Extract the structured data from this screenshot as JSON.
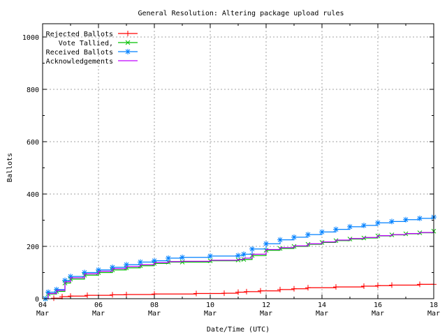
{
  "chart_data": {
    "type": "line",
    "title": "General Resolution: Altering package upload rules",
    "xlabel": "Date/Time (UTC)",
    "ylabel": "Ballots",
    "xlim": [
      4,
      18
    ],
    "ylim": [
      0,
      1040
    ],
    "grid": true,
    "legend_placement": "top-left",
    "x_ticks": [
      {
        "v": 4,
        "day": "04",
        "month": "Mar"
      },
      {
        "v": 6,
        "day": "06",
        "month": "Mar"
      },
      {
        "v": 8,
        "day": "08",
        "month": "Mar"
      },
      {
        "v": 10,
        "day": "10",
        "month": "Mar"
      },
      {
        "v": 12,
        "day": "12",
        "month": "Mar"
      },
      {
        "v": 14,
        "day": "14",
        "month": "Mar"
      },
      {
        "v": 16,
        "day": "16",
        "month": "Mar"
      },
      {
        "v": 18,
        "day": "18",
        "month": "Mar"
      }
    ],
    "y_ticks": [
      0,
      200,
      400,
      600,
      800,
      1000
    ],
    "series": [
      {
        "name": "Rejected Ballots",
        "color": "#ff0000",
        "marker": "plus",
        "x": [
          4.4,
          4.7,
          5.0,
          5.6,
          6.5,
          7.0,
          8.0,
          9.5,
          10.5,
          11.0,
          11.3,
          11.8,
          12.5,
          13.0,
          13.5,
          14.5,
          15.5,
          16.0,
          16.5,
          17.5,
          18.0
        ],
        "y": [
          2,
          8,
          10,
          13,
          15,
          16,
          18,
          20,
          21,
          25,
          27,
          30,
          35,
          38,
          42,
          45,
          48,
          50,
          52,
          55,
          55
        ]
      },
      {
        "name": "Vote Tallied,",
        "color": "#00c000",
        "marker": "cross",
        "x": [
          4.1,
          4.2,
          4.5,
          4.8,
          5.0,
          5.5,
          6.0,
          6.5,
          7.0,
          7.5,
          8.0,
          8.5,
          9.0,
          10.0,
          11.0,
          11.2,
          11.5,
          12.0,
          12.5,
          13.0,
          13.5,
          14.0,
          14.5,
          15.0,
          15.5,
          16.0,
          16.5,
          17.0,
          17.5,
          18.0
        ],
        "y": [
          0,
          18,
          28,
          60,
          75,
          90,
          100,
          110,
          118,
          126,
          135,
          140,
          140,
          145,
          148,
          150,
          165,
          185,
          192,
          200,
          208,
          215,
          222,
          228,
          232,
          240,
          244,
          248,
          252,
          258
        ]
      },
      {
        "name": "Received Ballots",
        "color": "#0080ff",
        "marker": "star",
        "x": [
          4.1,
          4.2,
          4.5,
          4.8,
          5.0,
          5.5,
          6.0,
          6.5,
          7.0,
          7.5,
          8.0,
          8.5,
          9.0,
          10.0,
          11.0,
          11.2,
          11.5,
          12.0,
          12.5,
          13.0,
          13.5,
          14.0,
          14.5,
          15.0,
          15.5,
          16.0,
          16.5,
          17.0,
          17.5,
          18.0
        ],
        "y": [
          0,
          25,
          35,
          70,
          85,
          100,
          110,
          120,
          130,
          140,
          145,
          155,
          158,
          163,
          165,
          170,
          190,
          210,
          225,
          235,
          245,
          255,
          265,
          275,
          280,
          290,
          295,
          302,
          307,
          312
        ]
      },
      {
        "name": "Acknowledgements",
        "color": "#c000ff",
        "marker": "none",
        "x": [
          4.1,
          4.2,
          4.5,
          4.8,
          5.0,
          5.5,
          6.0,
          6.5,
          7.0,
          7.5,
          8.0,
          8.5,
          9.0,
          10.0,
          11.0,
          11.2,
          11.5,
          12.0,
          12.5,
          13.0,
          13.5,
          14.0,
          14.5,
          15.0,
          15.5,
          16.0,
          16.5,
          17.0,
          17.5,
          18.0
        ],
        "y": [
          0,
          20,
          32,
          65,
          80,
          95,
          105,
          115,
          123,
          130,
          138,
          142,
          143,
          147,
          150,
          155,
          170,
          188,
          195,
          202,
          210,
          217,
          224,
          230,
          234,
          241,
          245,
          249,
          253,
          260
        ]
      }
    ]
  }
}
